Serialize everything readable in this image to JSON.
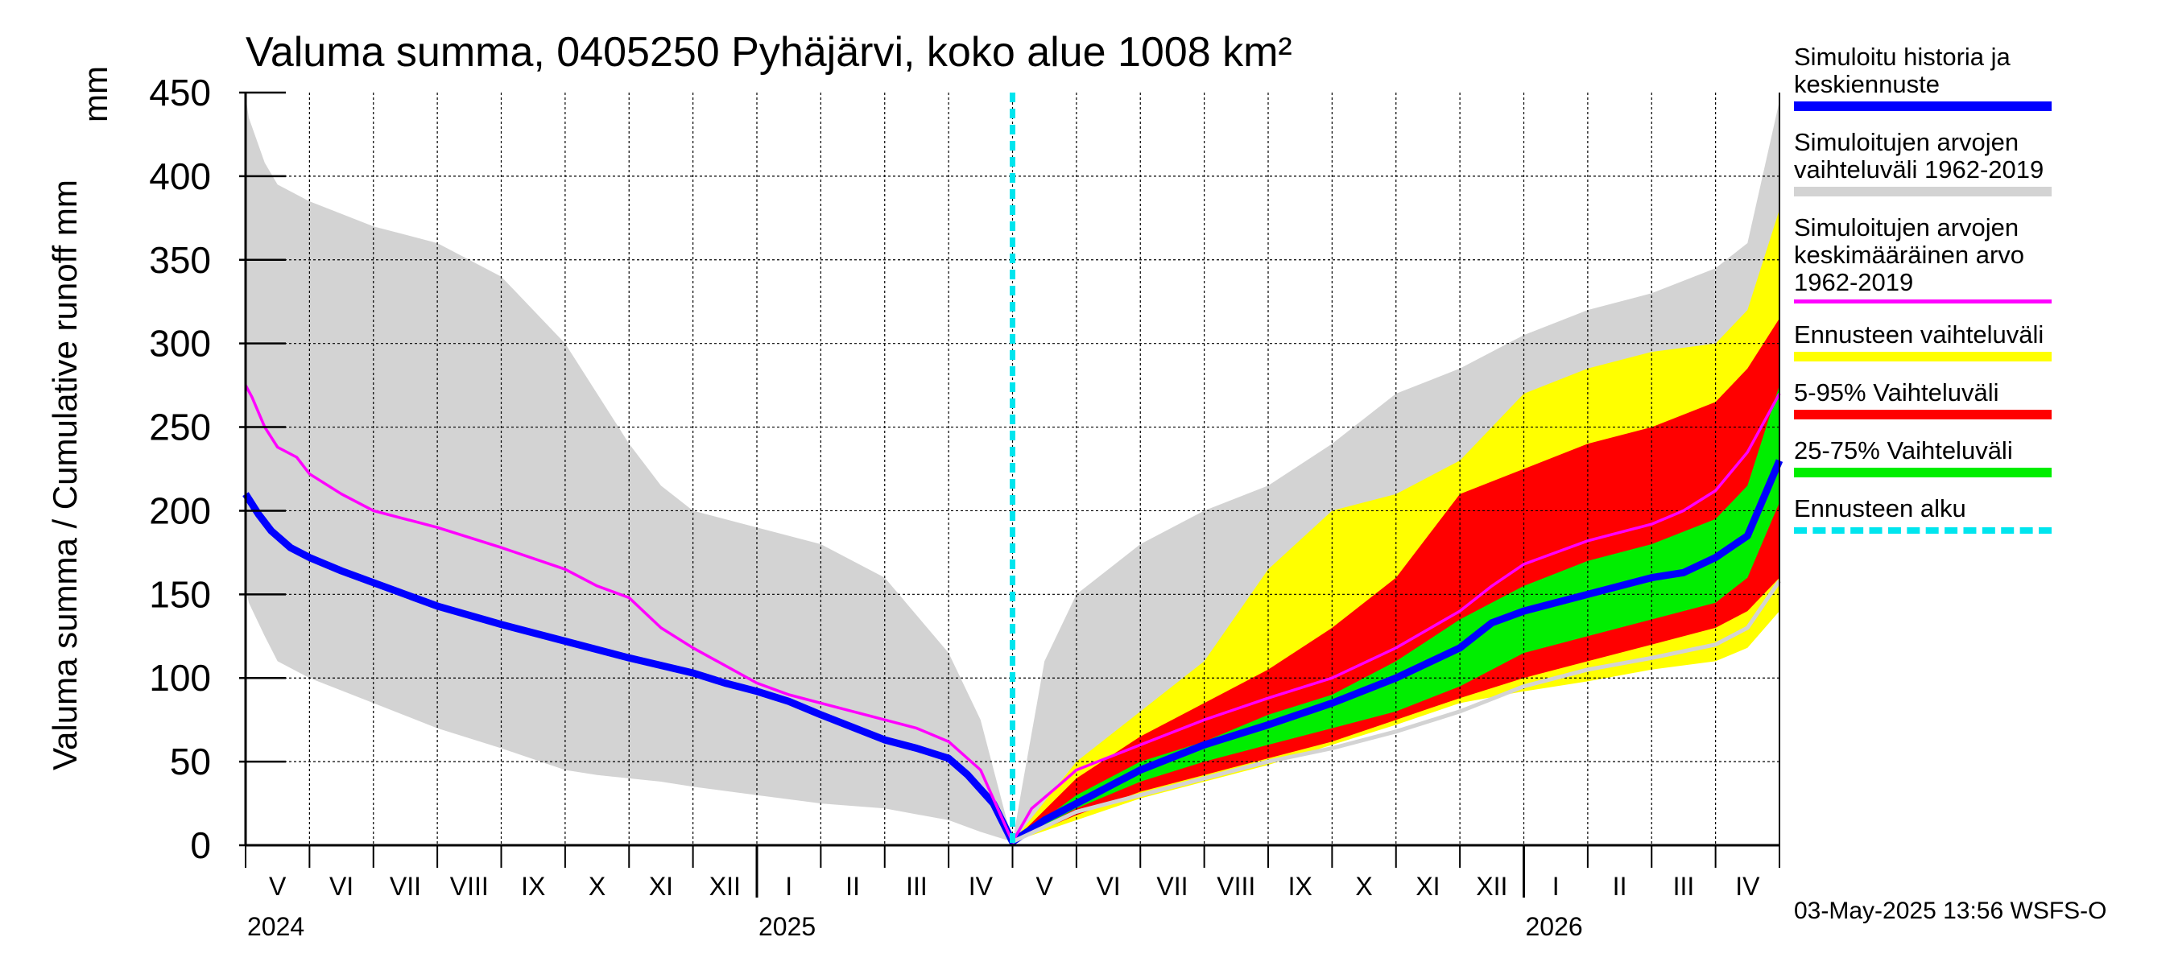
{
  "chart_data": {
    "type": "area",
    "title": "Valuma summa, 0405250 Pyhäjärvi, koko alue 1008 km²",
    "ylabel": "Valuma summa / Cumulative runoff    mm",
    "ylim": [
      0,
      450
    ],
    "yticks": [
      "0",
      "50",
      "100",
      "150",
      "200",
      "250",
      "300",
      "350",
      "400",
      "450"
    ],
    "month_labels": [
      "V",
      "VI",
      "VII",
      "VIII",
      "IX",
      "X",
      "XI",
      "XII",
      "I",
      "II",
      "III",
      "IV",
      "V",
      "VI",
      "VII",
      "VIII",
      "IX",
      "X",
      "XI",
      "XII",
      "I",
      "II",
      "III",
      "IV"
    ],
    "year_labels": [
      "2024",
      "2025",
      "2026"
    ],
    "forecast_start_month": 12,
    "x_months": [
      0,
      1,
      2,
      3,
      4,
      5,
      6,
      7,
      8,
      9,
      10,
      11,
      12,
      13,
      14,
      15,
      16,
      17,
      18,
      19,
      20,
      21,
      22,
      23,
      24
    ],
    "history_range": {
      "name": "Simuloitujen arvojen vaihteluväli 1962-2019",
      "x": [
        0,
        0.05,
        0.3,
        0.5,
        1,
        2,
        3,
        4,
        5,
        5.5,
        6,
        6.5,
        7,
        8,
        9,
        10,
        11,
        11.5,
        12,
        12.15,
        12.5,
        13,
        14,
        15,
        16,
        17,
        18,
        19,
        20,
        21,
        22,
        23,
        23.5,
        24
      ],
      "upper": [
        448,
        435,
        408,
        395,
        385,
        370,
        360,
        340,
        300,
        270,
        240,
        215,
        200,
        190,
        180,
        160,
        115,
        75,
        2,
        35,
        110,
        150,
        180,
        200,
        215,
        240,
        270,
        285,
        305,
        320,
        330,
        345,
        360,
        445
      ],
      "lower": [
        155,
        145,
        125,
        110,
        100,
        85,
        70,
        58,
        45,
        42,
        40,
        38,
        35,
        30,
        25,
        22,
        15,
        8,
        2,
        5,
        12,
        20,
        35,
        45,
        55,
        70,
        80,
        92,
        105,
        112,
        118,
        125,
        135,
        165
      ]
    },
    "forecast_range": {
      "name": "Ennusteen vaihteluväli",
      "x": [
        12,
        13,
        14,
        15,
        16,
        17,
        18,
        19,
        20,
        21,
        22,
        23,
        23.5,
        24
      ],
      "upper": [
        2,
        50,
        80,
        110,
        165,
        200,
        210,
        230,
        270,
        285,
        295,
        300,
        320,
        380
      ],
      "lower": [
        2,
        15,
        28,
        38,
        48,
        60,
        72,
        85,
        92,
        98,
        105,
        110,
        118,
        140
      ]
    },
    "p5_95": {
      "name": "5-95% Vaihteluväli",
      "x": [
        12,
        13,
        14,
        15,
        16,
        17,
        18,
        19,
        20,
        21,
        22,
        23,
        23.5,
        24
      ],
      "upper": [
        2,
        40,
        65,
        85,
        105,
        130,
        160,
        210,
        225,
        240,
        250,
        265,
        285,
        315
      ],
      "lower": [
        2,
        18,
        32,
        42,
        52,
        62,
        75,
        88,
        100,
        110,
        120,
        130,
        140,
        160
      ]
    },
    "p25_75": {
      "name": "25-75% Vaihteluväli",
      "x": [
        12,
        13,
        14,
        15,
        16,
        17,
        18,
        19,
        20,
        21,
        22,
        23,
        23.5,
        24
      ],
      "upper": [
        2,
        30,
        50,
        62,
        78,
        90,
        110,
        135,
        155,
        170,
        180,
        195,
        215,
        275
      ],
      "lower": [
        2,
        22,
        38,
        50,
        60,
        70,
        80,
        95,
        115,
        125,
        135,
        145,
        160,
        205
      ]
    },
    "series": [
      {
        "name": "Simuloitu historia ja keskiennuste",
        "color": "#0000ff",
        "x": [
          0,
          0.2,
          0.4,
          0.7,
          1,
          1.5,
          2,
          3,
          4,
          5,
          6,
          7,
          7.5,
          8,
          8.5,
          9,
          10,
          10.5,
          11,
          11.3,
          11.7,
          12,
          12.5,
          13,
          14,
          15,
          16,
          17,
          18,
          19,
          19.5,
          20,
          21,
          22,
          22.5,
          23,
          23.5,
          24
        ],
        "y": [
          210,
          198,
          188,
          178,
          172,
          164,
          157,
          143,
          132,
          122,
          112,
          103,
          97,
          92,
          86,
          78,
          63,
          58,
          52,
          42,
          25,
          2,
          15,
          25,
          45,
          60,
          72,
          85,
          100,
          118,
          133,
          140,
          150,
          160,
          163,
          172,
          185,
          230
        ]
      },
      {
        "name": "Simuloitujen arvojen keskimääräinen arvo 1962-2019",
        "color": "#ff00ff",
        "x": [
          0,
          0.1,
          0.3,
          0.5,
          0.8,
          1,
          1.5,
          2,
          3,
          4,
          5,
          5.5,
          6,
          6.5,
          7,
          8,
          8.5,
          9,
          10,
          10.5,
          11,
          11.5,
          12,
          12.3,
          12.7,
          13,
          14,
          15,
          16,
          17,
          18,
          19,
          19.5,
          20,
          21,
          22,
          22.5,
          23,
          23.5,
          24
        ],
        "y": [
          275,
          268,
          250,
          238,
          232,
          222,
          210,
          200,
          190,
          178,
          165,
          155,
          148,
          130,
          118,
          97,
          90,
          85,
          75,
          70,
          62,
          45,
          2,
          22,
          35,
          45,
          60,
          75,
          88,
          100,
          118,
          140,
          155,
          168,
          182,
          192,
          200,
          212,
          235,
          270
        ]
      },
      {
        "name": "Simuloitujen arvojen vaihteluväli 1962-2019 (alaraja)",
        "color": "#d3d3d3",
        "x": [
          12,
          13,
          14,
          15,
          16,
          17,
          18,
          19,
          20,
          21,
          22,
          23,
          23.5,
          24
        ],
        "y": [
          2,
          20,
          30,
          40,
          50,
          58,
          68,
          80,
          95,
          105,
          112,
          120,
          130,
          158
        ]
      }
    ],
    "legend": [
      {
        "label": "Simuloitu historia ja\nkeskiennuste",
        "color": "#0000ff",
        "style": "line"
      },
      {
        "label": "Simuloitujen arvojen\nvaihteluväli 1962-2019",
        "color": "#d3d3d3",
        "style": "line"
      },
      {
        "label": "Simuloitujen arvojen\nkeskimääräinen arvo\n   1962-2019",
        "color": "#ff00ff",
        "style": "thin"
      },
      {
        "label": "Ennusteen vaihteluväli",
        "color": "#ffff00",
        "style": "line"
      },
      {
        "label": "5-95% Vaihteluväli",
        "color": "#ff0000",
        "style": "line"
      },
      {
        "label": "25-75% Vaihteluväli",
        "color": "#00ee00",
        "style": "line"
      },
      {
        "label": "Ennusteen alku",
        "color": "#00e5ee",
        "style": "dash"
      }
    ],
    "footer": "03-May-2025 13:56 WSFS-O",
    "grid": true
  }
}
